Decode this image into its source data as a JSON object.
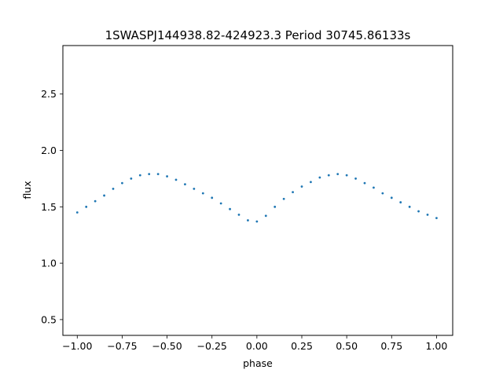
{
  "chart_data": {
    "type": "scatter",
    "title": "1SWASPJ144938.82-424923.3 Period 30745.86133s",
    "xlabel": "phase",
    "ylabel": "flux",
    "xlim": [
      -1.08,
      1.09
    ],
    "ylim": [
      0.36,
      2.93
    ],
    "xticks": [
      -1.0,
      -0.75,
      -0.5,
      -0.25,
      0.0,
      0.25,
      0.5,
      0.75,
      1.0
    ],
    "xtick_labels": [
      "−1.00",
      "−0.75",
      "−0.50",
      "−0.25",
      "0.00",
      "0.25",
      "0.50",
      "0.75",
      "1.00"
    ],
    "yticks": [
      0.5,
      1.0,
      1.5,
      2.0,
      2.5
    ],
    "ytick_labels": [
      "0.5",
      "1.0",
      "1.5",
      "2.0",
      "2.5"
    ],
    "grid": false,
    "legend": "none",
    "marker_color": "#1f77b4",
    "series": [
      {
        "x": [
          -1.0,
          -0.95,
          -0.9,
          -0.85,
          -0.8,
          -0.75,
          -0.7,
          -0.65,
          -0.6,
          -0.55,
          -0.5,
          -0.45,
          -0.4,
          -0.35,
          -0.3,
          -0.25,
          -0.2,
          -0.15,
          -0.1,
          -0.05,
          0.0,
          0.05,
          0.1,
          0.15,
          0.2,
          0.25,
          0.3,
          0.35,
          0.4,
          0.45,
          0.5,
          0.55,
          0.6,
          0.65,
          0.7,
          0.75,
          0.8,
          0.85,
          0.9,
          0.95,
          1.0
        ],
        "y": [
          1.45,
          1.5,
          1.55,
          1.6,
          1.66,
          1.71,
          1.75,
          1.78,
          1.79,
          1.79,
          1.77,
          1.74,
          1.7,
          1.66,
          1.62,
          1.58,
          1.53,
          1.48,
          1.43,
          1.38,
          1.37,
          1.42,
          1.5,
          1.57,
          1.63,
          1.68,
          1.72,
          1.76,
          1.78,
          1.79,
          1.78,
          1.75,
          1.71,
          1.67,
          1.62,
          1.58,
          1.54,
          1.5,
          1.46,
          1.43,
          1.4
        ]
      }
    ]
  }
}
